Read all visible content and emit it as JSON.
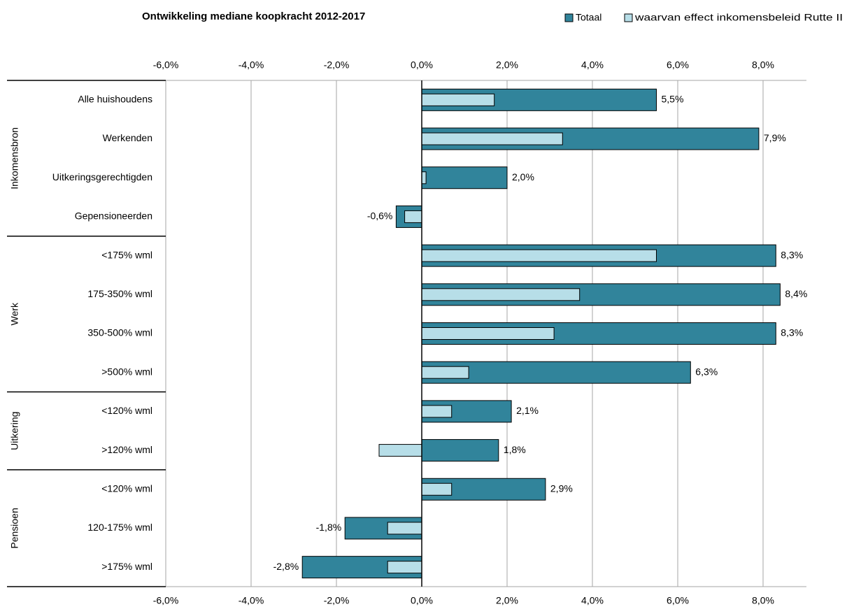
{
  "chart_data": {
    "type": "bar",
    "orientation": "horizontal",
    "title": "Ontwikkeling mediane koopkracht 2012-2017",
    "xlim": [
      -6,
      9
    ],
    "x_ticks": [
      "-6,0%",
      "-4,0%",
      "-2,0%",
      "0,0%",
      "2,0%",
      "4,0%",
      "6,0%",
      "8,0%"
    ],
    "x_tick_values": [
      -6,
      -4,
      -2,
      0,
      2,
      4,
      6,
      8
    ],
    "grid": "vertical",
    "legend_position": "top-right",
    "categories": [
      "Alle huishoudens",
      "Werkenden",
      "Uitkeringsgerechtigden",
      "Gepensioneerden",
      "<175% wml",
      "175-350% wml",
      "350-500% wml",
      ">500% wml",
      "<120% wml",
      ">120% wml",
      "<120% wml",
      "120-175% wml",
      ">175% wml"
    ],
    "groups": [
      {
        "name": "Inkomensbron",
        "count": 4
      },
      {
        "name": "Werk",
        "count": 4
      },
      {
        "name": "Uitkering",
        "count": 2
      },
      {
        "name": "Pensioen",
        "count": 3
      }
    ],
    "series": [
      {
        "name": "Totaal",
        "color": "#31849b",
        "values": [
          5.5,
          7.9,
          2.0,
          -0.6,
          8.3,
          8.4,
          8.3,
          6.3,
          2.1,
          1.8,
          2.9,
          -1.8,
          -2.8
        ],
        "labels": [
          "5,5%",
          "7,9%",
          "2,0%",
          "-0,6%",
          "8,3%",
          "8,4%",
          "8,3%",
          "6,3%",
          "2,1%",
          "1,8%",
          "2,9%",
          "-1,8%",
          "-2,8%"
        ]
      },
      {
        "name": "waarvan effect inkomensbeleid Rutte II",
        "color": "#b7dee8",
        "values": [
          1.7,
          3.3,
          0.1,
          -0.4,
          5.5,
          3.7,
          3.1,
          1.1,
          0.7,
          -1.0,
          0.7,
          -0.8,
          -0.8
        ]
      }
    ]
  }
}
